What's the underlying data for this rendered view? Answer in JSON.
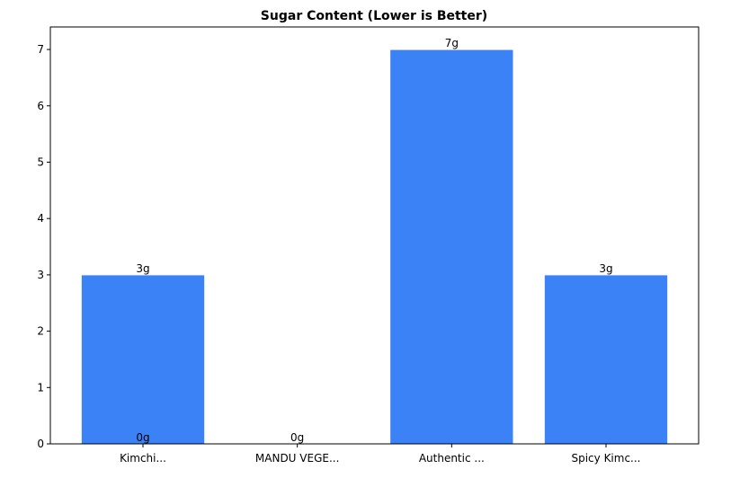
{
  "chart_data": {
    "type": "bar",
    "title": "Sugar Content (Lower is Better)",
    "categories": [
      "Kimchi...",
      "MANDU VEGE...",
      "Authentic ...",
      "Spicy Kimc..."
    ],
    "values": [
      3,
      0,
      7,
      3
    ],
    "value_labels": [
      "3g",
      "0g",
      "7g",
      "3g"
    ],
    "annotations": [
      "0g"
    ],
    "color": "#3b82f6",
    "ylim": [
      0,
      7.4
    ],
    "yticks": [
      0,
      1,
      2,
      3,
      4,
      5,
      6,
      7
    ]
  }
}
